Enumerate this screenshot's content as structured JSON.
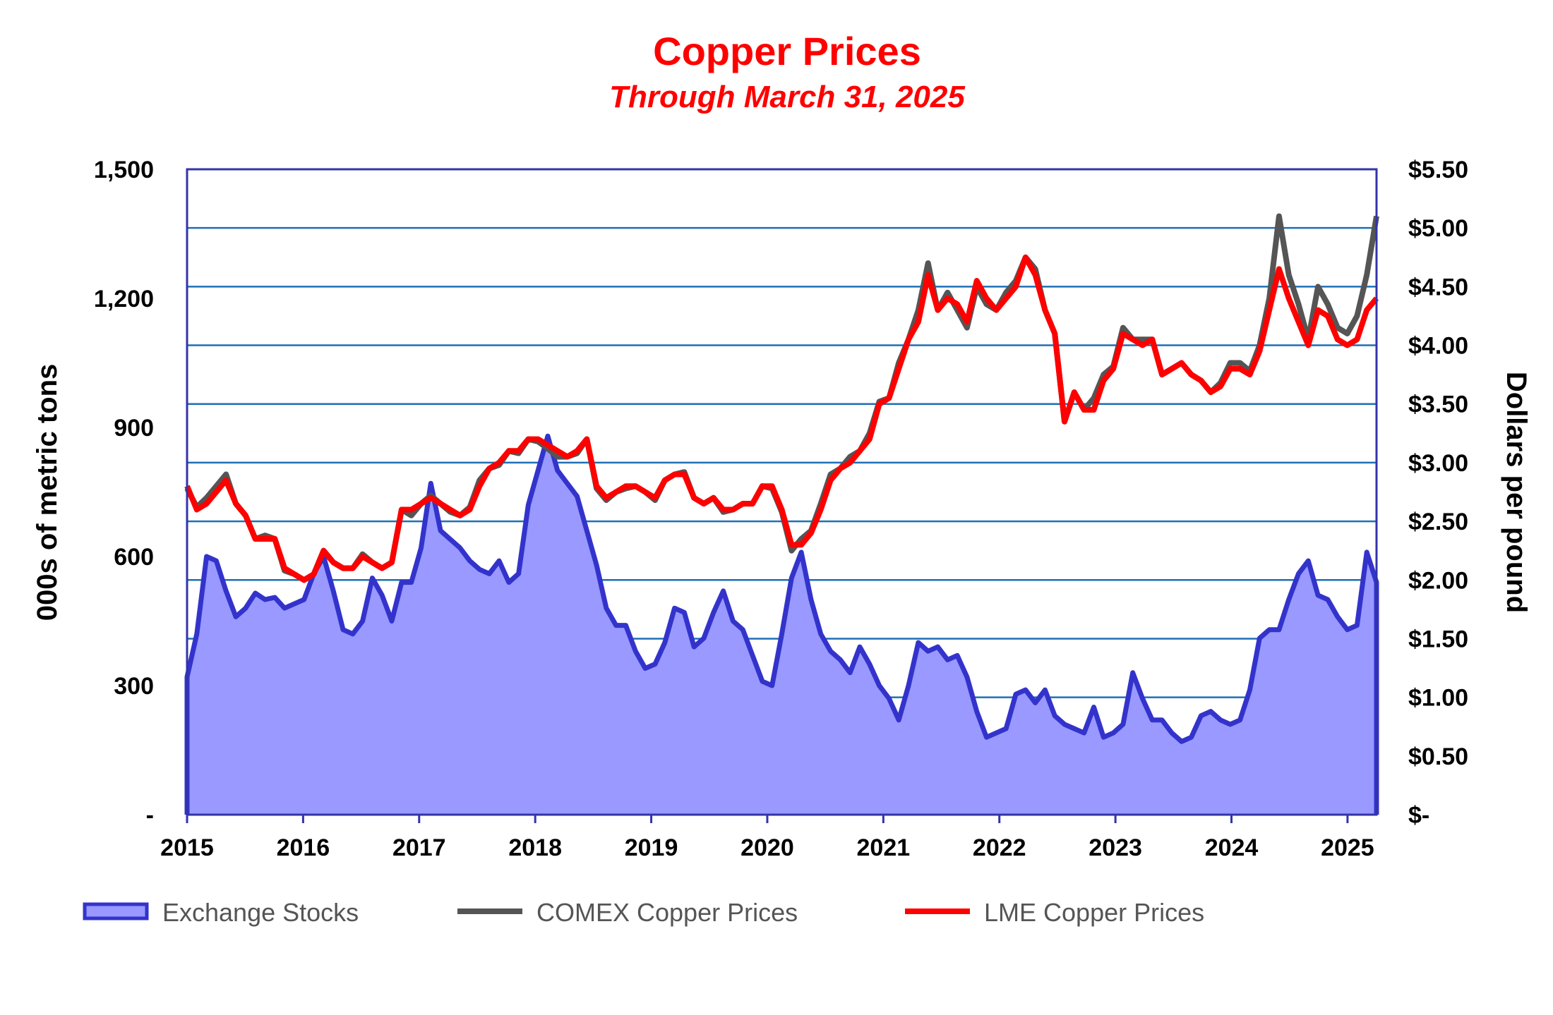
{
  "chart_data": {
    "type": "line+area",
    "title": "Copper Prices",
    "subtitle": "Through March 31, 2025",
    "ylabel_left": "000s of metric tons",
    "ylabel_right": "Dollars per pound",
    "ylim_left": [
      0,
      1500
    ],
    "ylim_right": [
      0,
      5.5
    ],
    "xlim": [
      "2015-01",
      "2025-03"
    ],
    "grid": true,
    "legend_position": "bottom",
    "left_ticks": [
      "-",
      "300",
      "600",
      "900",
      "1,200",
      "1,500"
    ],
    "left_tick_values": [
      0,
      300,
      600,
      900,
      1200,
      1500
    ],
    "right_ticks": [
      "$-",
      "$0.50",
      "$1.00",
      "$1.50",
      "$2.00",
      "$2.50",
      "$3.00",
      "$3.50",
      "$4.00",
      "$4.50",
      "$5.00",
      "$5.50"
    ],
    "right_tick_values": [
      0,
      0.5,
      1,
      1.5,
      2,
      2.5,
      3,
      3.5,
      4,
      4.5,
      5,
      5.5
    ],
    "x_ticks": [
      "2015",
      "2016",
      "2017",
      "2018",
      "2019",
      "2020",
      "2021",
      "2022",
      "2023",
      "2024",
      "2025"
    ],
    "x_start_year": 2015,
    "x_start_month": 1,
    "series": [
      {
        "name": "Exchange Stocks",
        "axis": "left",
        "type": "area",
        "color": "#3333cc",
        "fill": "#9999ff",
        "values": [
          320,
          420,
          600,
          590,
          520,
          460,
          480,
          515,
          500,
          505,
          480,
          490,
          500,
          560,
          600,
          520,
          430,
          420,
          450,
          550,
          510,
          450,
          540,
          540,
          620,
          770,
          660,
          640,
          620,
          590,
          570,
          560,
          590,
          540,
          560,
          720,
          800,
          880,
          800,
          770,
          740,
          660,
          580,
          480,
          440,
          440,
          380,
          340,
          350,
          400,
          480,
          470,
          390,
          410,
          470,
          520,
          450,
          430,
          370,
          310,
          300,
          420,
          550,
          610,
          500,
          420,
          380,
          360,
          330,
          390,
          350,
          300,
          270,
          220,
          300,
          400,
          380,
          390,
          360,
          370,
          320,
          240,
          180,
          190,
          200,
          280,
          290,
          260,
          290,
          230,
          210,
          200,
          190,
          250,
          180,
          190,
          210,
          330,
          270,
          220,
          220,
          190,
          170,
          180,
          230,
          240,
          220,
          210,
          220,
          290,
          410,
          430,
          430,
          500,
          560,
          590,
          510,
          500,
          460,
          430,
          440,
          610,
          540
        ]
      },
      {
        "name": "COMEX Copper Prices",
        "axis": "right",
        "type": "line",
        "color": "#555555",
        "values": [
          2.78,
          2.62,
          2.7,
          2.8,
          2.9,
          2.65,
          2.55,
          2.35,
          2.38,
          2.35,
          2.08,
          2.05,
          2.0,
          2.05,
          2.25,
          2.15,
          2.1,
          2.1,
          2.22,
          2.15,
          2.1,
          2.15,
          2.6,
          2.55,
          2.65,
          2.72,
          2.65,
          2.58,
          2.55,
          2.62,
          2.85,
          2.95,
          2.98,
          3.1,
          3.08,
          3.2,
          3.18,
          3.12,
          3.05,
          3.05,
          3.08,
          3.2,
          2.78,
          2.68,
          2.75,
          2.78,
          2.8,
          2.75,
          2.68,
          2.85,
          2.9,
          2.92,
          2.7,
          2.65,
          2.7,
          2.58,
          2.6,
          2.65,
          2.65,
          2.8,
          2.78,
          2.58,
          2.25,
          2.35,
          2.42,
          2.65,
          2.9,
          2.95,
          3.05,
          3.1,
          3.25,
          3.52,
          3.55,
          3.85,
          4.05,
          4.3,
          4.7,
          4.3,
          4.45,
          4.3,
          4.15,
          4.5,
          4.35,
          4.3,
          4.45,
          4.55,
          4.75,
          4.65,
          4.3,
          4.1,
          3.35,
          3.6,
          3.45,
          3.55,
          3.75,
          3.82,
          4.15,
          4.05,
          4.05,
          4.05,
          3.75,
          3.8,
          3.85,
          3.75,
          3.7,
          3.6,
          3.68,
          3.85,
          3.85,
          3.78,
          4.0,
          4.4,
          5.1,
          4.6,
          4.35,
          4.05,
          4.5,
          4.35,
          4.15,
          4.1,
          4.25,
          4.6,
          5.1
        ]
      },
      {
        "name": "LME Copper Prices",
        "axis": "right",
        "type": "line",
        "color": "#ff0000",
        "values": [
          2.8,
          2.6,
          2.65,
          2.75,
          2.85,
          2.65,
          2.55,
          2.35,
          2.35,
          2.35,
          2.1,
          2.05,
          2.0,
          2.05,
          2.25,
          2.15,
          2.1,
          2.1,
          2.2,
          2.15,
          2.1,
          2.15,
          2.6,
          2.6,
          2.65,
          2.7,
          2.65,
          2.6,
          2.55,
          2.6,
          2.8,
          2.95,
          3.0,
          3.1,
          3.1,
          3.2,
          3.2,
          3.15,
          3.1,
          3.05,
          3.1,
          3.2,
          2.8,
          2.7,
          2.75,
          2.8,
          2.8,
          2.75,
          2.7,
          2.85,
          2.9,
          2.9,
          2.7,
          2.65,
          2.7,
          2.6,
          2.6,
          2.65,
          2.65,
          2.8,
          2.8,
          2.6,
          2.3,
          2.3,
          2.4,
          2.6,
          2.85,
          2.95,
          3.0,
          3.1,
          3.2,
          3.5,
          3.55,
          3.8,
          4.05,
          4.2,
          4.6,
          4.3,
          4.4,
          4.35,
          4.2,
          4.55,
          4.4,
          4.3,
          4.4,
          4.5,
          4.75,
          4.6,
          4.3,
          4.1,
          3.35,
          3.6,
          3.45,
          3.45,
          3.7,
          3.8,
          4.1,
          4.05,
          4.0,
          4.05,
          3.75,
          3.8,
          3.85,
          3.75,
          3.7,
          3.6,
          3.65,
          3.8,
          3.8,
          3.75,
          3.95,
          4.3,
          4.65,
          4.4,
          4.2,
          4.0,
          4.3,
          4.25,
          4.05,
          4.0,
          4.05,
          4.3,
          4.4
        ]
      }
    ],
    "colors": {
      "grid": "#1f6fb5",
      "frame": "#3333aa",
      "title": "#ff0000",
      "legend_text": "#555555"
    }
  }
}
